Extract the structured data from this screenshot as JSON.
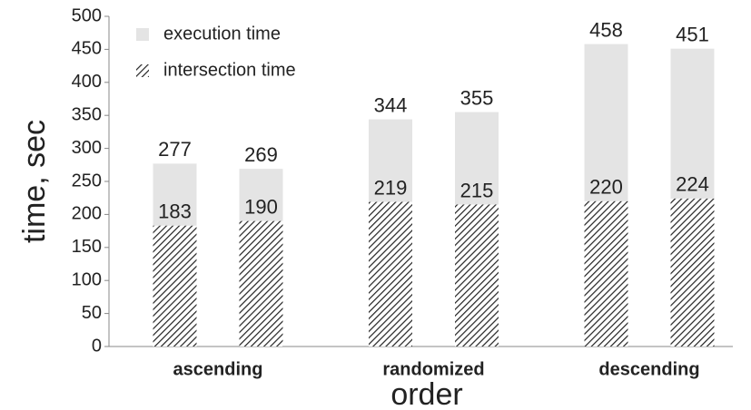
{
  "chart_data": {
    "type": "bar",
    "x_label": "order",
    "y_label": "time, sec",
    "categories": [
      "ascending",
      "randomized",
      "descending"
    ],
    "series": [
      {
        "name": "execution time",
        "color": "#e4e4e4",
        "values": [
          [
            277,
            269
          ],
          [
            344,
            355
          ],
          [
            458,
            451
          ]
        ]
      },
      {
        "name": "intersection time",
        "color": "#333333",
        "hatched": true,
        "values": [
          [
            183,
            190
          ],
          [
            219,
            215
          ],
          [
            220,
            224
          ]
        ]
      }
    ],
    "ylim": [
      0,
      500
    ],
    "yticks": [
      0,
      50,
      100,
      150,
      200,
      250,
      300,
      350,
      400,
      450,
      500
    ],
    "grid": false,
    "legend": "upper left"
  }
}
